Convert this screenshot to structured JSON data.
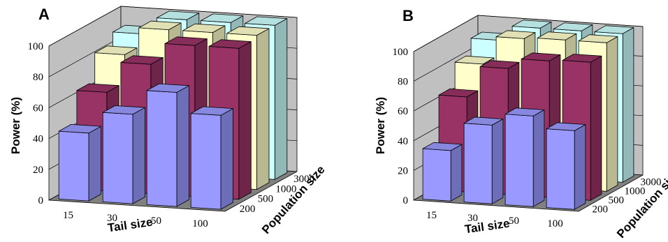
{
  "chart_data": [
    {
      "type": "bar3d",
      "panel_label": "A",
      "ylabel": "Power (%)",
      "xlabel": "Tail size",
      "zlabel": "Population size",
      "x_categories": [
        "15",
        "30",
        "50",
        "100"
      ],
      "z_categories": [
        "200",
        "500",
        "1000",
        "3000"
      ],
      "yticks": [
        "0",
        "20",
        "40",
        "60",
        "80",
        "100"
      ],
      "ylim": [
        0,
        100
      ],
      "grid": true,
      "series": [
        {
          "population": "200",
          "color": "#9999ff",
          "values": [
            44,
            58,
            74,
            61
          ]
        },
        {
          "population": "500",
          "color": "#993366",
          "values": [
            64,
            84,
            98,
            98
          ]
        },
        {
          "population": "1000",
          "color": "#ffffcc",
          "values": [
            82,
            100,
            100,
            100
          ]
        },
        {
          "population": "3000",
          "color": "#ccffff",
          "values": [
            89,
            100,
            100,
            100
          ]
        }
      ]
    },
    {
      "type": "bar3d",
      "panel_label": "B",
      "ylabel": "Power (%)",
      "xlabel": "Tail size",
      "zlabel": "Population size",
      "x_categories": [
        "15",
        "30",
        "50",
        "100"
      ],
      "z_categories": [
        "200",
        "500",
        "1000",
        "3000"
      ],
      "yticks": [
        "0",
        "20",
        "40",
        "60",
        "80",
        "100"
      ],
      "ylim": [
        0,
        100
      ],
      "grid": true,
      "series": [
        {
          "population": "200",
          "color": "#9999ff",
          "values": [
            34,
            53,
            61,
            53
          ]
        },
        {
          "population": "500",
          "color": "#993366",
          "values": [
            64,
            85,
            92,
            93
          ]
        },
        {
          "population": "1000",
          "color": "#ffffcc",
          "values": [
            80,
            99,
            100,
            100
          ]
        },
        {
          "population": "3000",
          "color": "#ccffff",
          "values": [
            90,
            100,
            100,
            100
          ]
        }
      ]
    }
  ]
}
